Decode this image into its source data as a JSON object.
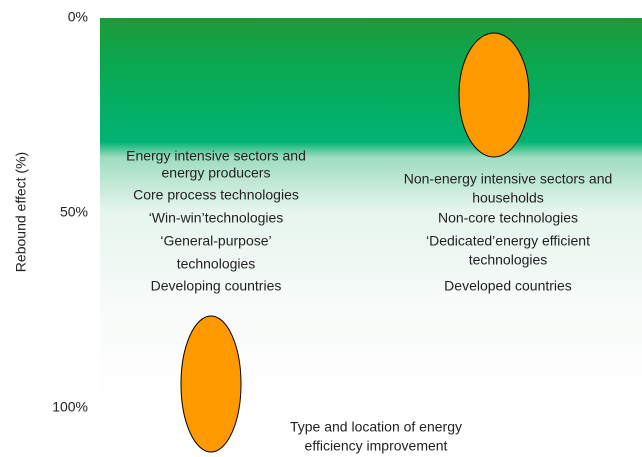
{
  "y_axis": {
    "label": "Rebound effect (%)",
    "ticks": [
      "0%",
      "50%",
      "100%"
    ]
  },
  "x_axis_label": [
    "Type and location of energy",
    "efficiency improvement"
  ],
  "left_group": {
    "lines": [
      "Energy intensive sectors and",
      "energy producers",
      "Core process technologies",
      "‘Win-win’technologies",
      "‘General-purpose’",
      "technologies",
      "Developing countries"
    ]
  },
  "right_group": {
    "lines": [
      "Non-energy intensive sectors and",
      "households",
      "Non-core technologies",
      "‘Dedicated’energy efficient",
      "technologies",
      "Developed countries"
    ]
  }
}
